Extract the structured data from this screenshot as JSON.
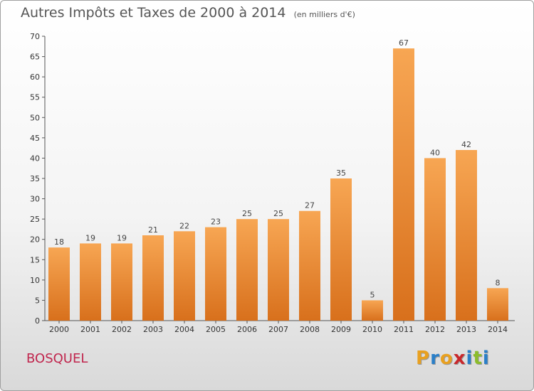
{
  "chart_data": {
    "type": "bar",
    "title": "Autres Impôts et Taxes de 2000 à 2014",
    "subtitle": "(en milliers d'€)",
    "categories": [
      "2000",
      "2001",
      "2002",
      "2003",
      "2004",
      "2005",
      "2006",
      "2007",
      "2008",
      "2009",
      "2010",
      "2011",
      "2012",
      "2013",
      "2014"
    ],
    "values": [
      18,
      19,
      19,
      21,
      22,
      23,
      25,
      25,
      27,
      35,
      5,
      67,
      40,
      42,
      8
    ],
    "ylim": [
      0,
      70
    ],
    "yticks": [
      0,
      5,
      10,
      15,
      20,
      25,
      30,
      35,
      40,
      45,
      50,
      55,
      60,
      65,
      70
    ],
    "grid": false,
    "bar_color": "#e8832a"
  },
  "commune": "BOSQUEL",
  "brand": {
    "letters": [
      "P",
      "r",
      "o",
      "x",
      "i",
      "t",
      "i"
    ],
    "colors": [
      "#e8a020",
      "#2a7fc8",
      "#e8a020",
      "#c8282c",
      "#2a7fc8",
      "#8cbc2c",
      "#2a7fc8"
    ]
  }
}
